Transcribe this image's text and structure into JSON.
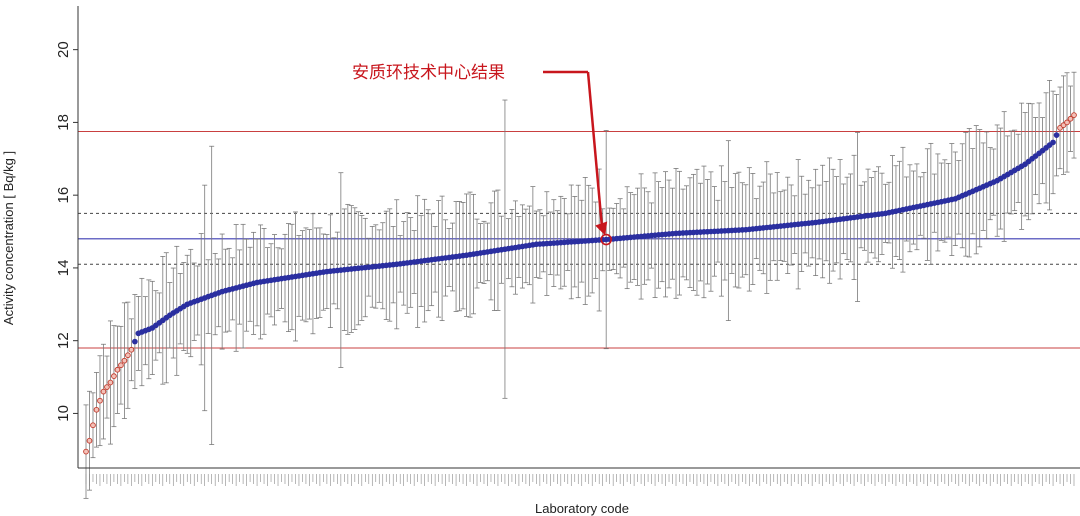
{
  "chart_data": {
    "type": "scatter",
    "title": "",
    "xlabel": "Laboratory code",
    "ylabel": "Activity concentration  [ Bq/kg ]",
    "ylim": [
      8.5,
      21.2
    ],
    "yticks": [
      10,
      12,
      14,
      16,
      18,
      20
    ],
    "grid": false,
    "legend": "none",
    "n_labs": 284,
    "reference_lines": {
      "assigned_value": 14.8,
      "inner_limits": [
        14.1,
        15.5
      ],
      "outer_limits": [
        11.8,
        17.75
      ]
    },
    "highlight": {
      "label": "安质环技术中心结果",
      "rank": 150,
      "value": 14.78,
      "uncertainty": 3.0
    },
    "series": [
      {
        "values_outline": [
          {
            "rank": 1,
            "value": 8.95
          },
          {
            "rank": 2,
            "value": 9.25
          },
          {
            "rank": 4,
            "value": 10.1
          },
          {
            "rank": 6,
            "value": 10.6
          },
          {
            "rank": 8,
            "value": 10.85
          },
          {
            "rank": 10,
            "value": 11.2
          },
          {
            "rank": 12,
            "value": 11.45
          },
          {
            "rank": 14,
            "value": 11.75
          },
          {
            "rank": 16,
            "value": 12.2
          },
          {
            "rank": 20,
            "value": 12.35
          },
          {
            "rank": 25,
            "value": 12.7
          },
          {
            "rank": 30,
            "value": 13.0
          },
          {
            "rank": 40,
            "value": 13.35
          },
          {
            "rank": 50,
            "value": 13.6
          },
          {
            "rank": 70,
            "value": 13.9
          },
          {
            "rank": 90,
            "value": 14.1
          },
          {
            "rank": 110,
            "value": 14.35
          },
          {
            "rank": 130,
            "value": 14.65
          },
          {
            "rank": 150,
            "value": 14.78
          },
          {
            "rank": 170,
            "value": 14.95
          },
          {
            "rank": 190,
            "value": 15.05
          },
          {
            "rank": 210,
            "value": 15.25
          },
          {
            "rank": 230,
            "value": 15.5
          },
          {
            "rank": 250,
            "value": 15.9
          },
          {
            "rank": 262,
            "value": 16.4
          },
          {
            "rank": 270,
            "value": 16.85
          },
          {
            "rank": 276,
            "value": 17.3
          },
          {
            "rank": 278,
            "value": 17.45
          },
          {
            "rank": 280,
            "value": 17.85
          },
          {
            "rank": 282,
            "value": 18.0
          },
          {
            "rank": 284,
            "value": 18.2
          }
        ],
        "typical_uncertainty": 1.4,
        "outlier_ranks_low": 14,
        "outlier_ranks_high": 5,
        "marker_color": "#2a2fa0",
        "outlier_color": "#c0392b"
      }
    ],
    "colors": {
      "assigned_line": "#3b3bb3",
      "outer_limit_line": "#c94040",
      "inner_limit_line": "#444444",
      "errorbar": "#7a7a7a",
      "annotation": "#c8161d"
    }
  }
}
